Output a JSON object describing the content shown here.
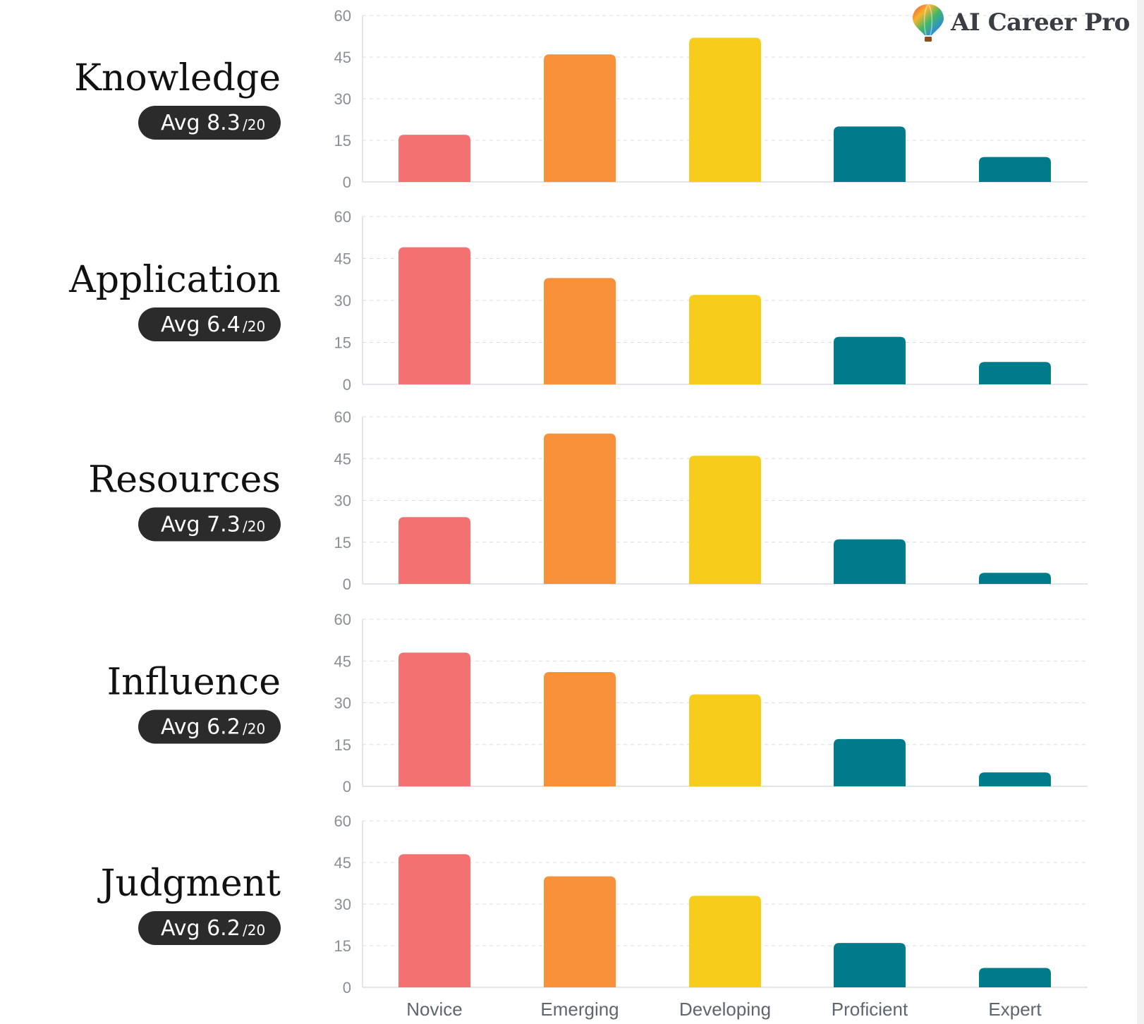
{
  "brand": {
    "name": "AI Career Pro",
    "logo_icon": "hot-air-balloon-icon"
  },
  "colors": {
    "novice": "#f47171",
    "emerging": "#f8913a",
    "developing": "#f8cc1b",
    "proficient": "#007b8c",
    "expert": "#007b8c",
    "label": "#111111",
    "pill_bg": "#2b2b2b",
    "pill_text": "#ffffff",
    "tick": "#8a8f98",
    "grid": "#d9dde3"
  },
  "chart_data": [
    {
      "type": "bar",
      "title": "Knowledge",
      "avg_label": "Avg 8.3",
      "avg_suffix": "/20",
      "categories": [
        "Novice",
        "Emerging",
        "Developing",
        "Proficient",
        "Expert"
      ],
      "values": [
        17,
        46,
        52,
        20,
        9
      ],
      "ylim": [
        0,
        60
      ],
      "yticks": [
        0,
        15,
        30,
        45,
        60
      ],
      "grid": true
    },
    {
      "type": "bar",
      "title": "Application",
      "avg_label": "Avg 6.4",
      "avg_suffix": "/20",
      "categories": [
        "Novice",
        "Emerging",
        "Developing",
        "Proficient",
        "Expert"
      ],
      "values": [
        49,
        38,
        32,
        17,
        8
      ],
      "ylim": [
        0,
        60
      ],
      "yticks": [
        0,
        15,
        30,
        45,
        60
      ],
      "grid": true
    },
    {
      "type": "bar",
      "title": "Resources",
      "avg_label": "Avg 7.3",
      "avg_suffix": "/20",
      "categories": [
        "Novice",
        "Emerging",
        "Developing",
        "Proficient",
        "Expert"
      ],
      "values": [
        24,
        54,
        46,
        16,
        4
      ],
      "ylim": [
        0,
        60
      ],
      "yticks": [
        0,
        15,
        30,
        45,
        60
      ],
      "grid": true
    },
    {
      "type": "bar",
      "title": "Influence",
      "avg_label": "Avg 6.2",
      "avg_suffix": "/20",
      "categories": [
        "Novice",
        "Emerging",
        "Developing",
        "Proficient",
        "Expert"
      ],
      "values": [
        48,
        41,
        33,
        17,
        5
      ],
      "ylim": [
        0,
        60
      ],
      "yticks": [
        0,
        15,
        30,
        45,
        60
      ],
      "grid": true
    },
    {
      "type": "bar",
      "title": "Judgment",
      "avg_label": "Avg 6.2",
      "avg_suffix": "/20",
      "categories": [
        "Novice",
        "Emerging",
        "Developing",
        "Proficient",
        "Expert"
      ],
      "values": [
        48,
        40,
        33,
        16,
        7
      ],
      "ylim": [
        0,
        60
      ],
      "yticks": [
        0,
        15,
        30,
        45,
        60
      ],
      "grid": true
    }
  ]
}
